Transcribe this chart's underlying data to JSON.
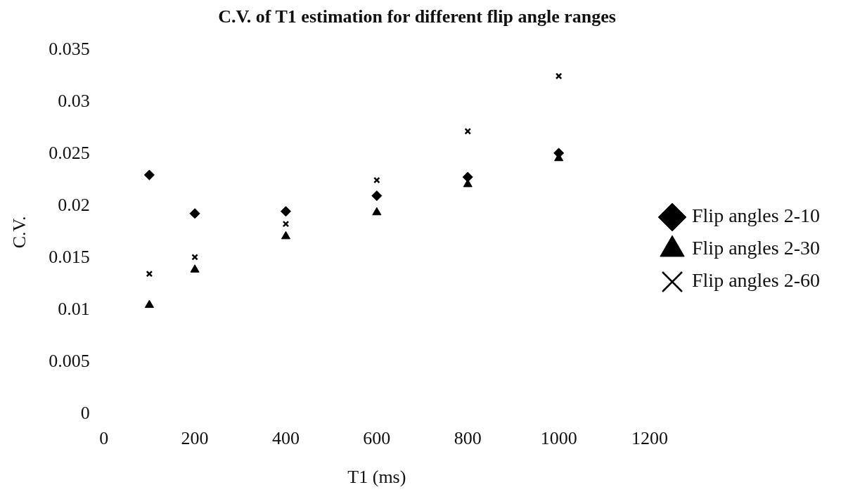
{
  "chart_data": {
    "type": "scatter",
    "title": "C.V. of T1 estimation for different flip angle ranges",
    "xlabel": "T1 (ms)",
    "ylabel": "C.V.",
    "x": [
      100,
      200,
      400,
      600,
      800,
      1000
    ],
    "series": [
      {
        "name": "Flip angles 2-10",
        "color": "#000000",
        "marker": "diamond",
        "values": [
          0.023,
          0.0193,
          0.0195,
          0.021,
          0.0228,
          0.0251
        ]
      },
      {
        "name": "Flip angles 2-30",
        "color": "#000000",
        "marker": "triangle",
        "values": [
          0.0105,
          0.0139,
          0.0171,
          0.0194,
          0.0221,
          0.0246
        ]
      },
      {
        "name": "Flip angles 2-60",
        "color": "#000000",
        "marker": "cross",
        "values": [
          0.0135,
          0.0151,
          0.0183,
          0.0225,
          0.0272,
          0.0325
        ]
      }
    ],
    "xlim": [
      0,
      1200
    ],
    "xticks": [
      0,
      200,
      400,
      600,
      800,
      1000,
      1200
    ],
    "ylim": [
      0,
      0.035
    ],
    "yticks": [
      0,
      0.005,
      0.01,
      0.015,
      0.02,
      0.025,
      0.03,
      0.035
    ],
    "grid": false,
    "legend": "right"
  }
}
